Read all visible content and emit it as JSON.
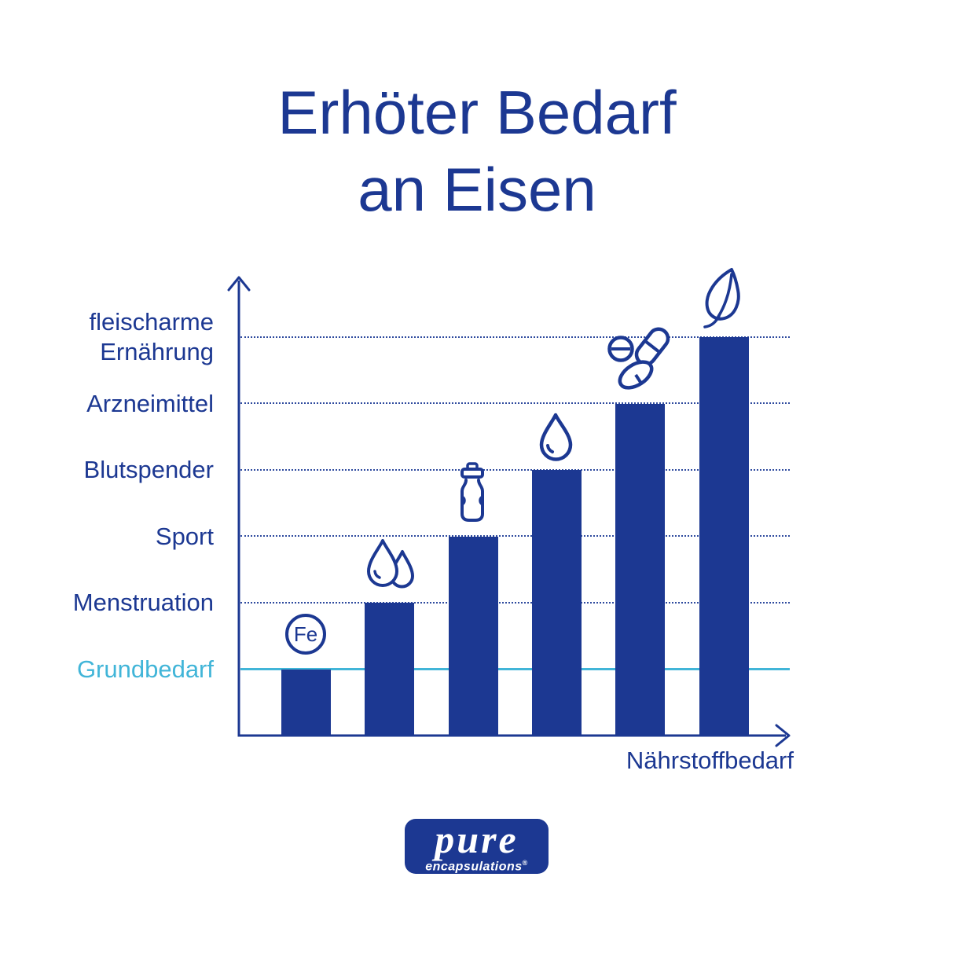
{
  "title": {
    "line1": "Erhöter Bedarf",
    "line2": "an Eisen"
  },
  "chart_data": {
    "type": "bar",
    "title": "Erhöter Bedarf an Eisen",
    "xlabel": "Nährstoffbedarf",
    "ylabel": "",
    "categories": [
      "Grundbedarf",
      "Menstruation",
      "Sport",
      "Blutspender",
      "Arzneimittel",
      "fleischarme Ernährung"
    ],
    "values": [
      1,
      2,
      3,
      4,
      5,
      6
    ],
    "ylim": [
      0,
      6.9
    ],
    "y_axis_unit": "relative iron requirement level (no numeric ticks shown)",
    "gridlines": "dotted dark-blue horizontal line at each category level; solid teal line at the Grundbedarf level",
    "legend": "none",
    "bar_color": "#1c3892",
    "baseline_color": "#41b5d8",
    "fe_symbol": "Fe",
    "rows": [
      {
        "label": "Grundbedarf",
        "value": 1,
        "icon": "fe-circle-icon",
        "line_style": "solid-teal"
      },
      {
        "label": "Menstruation",
        "value": 2,
        "icon": "water-drops-icon",
        "line_style": "dotted"
      },
      {
        "label": "Sport",
        "value": 3,
        "icon": "sports-bottle-icon",
        "line_style": "dotted"
      },
      {
        "label": "Blutspender",
        "value": 4,
        "icon": "blood-drop-icon",
        "line_style": "dotted"
      },
      {
        "label": "Arzneimittel",
        "value": 5,
        "icon": "pills-icon",
        "line_style": "dotted"
      },
      {
        "label": "fleischarme Ernährung",
        "value": 6,
        "icon": "leaf-icon",
        "line_style": "dotted"
      }
    ]
  },
  "logo": {
    "brand": "pure",
    "sub": "encapsulations",
    "registered": "®"
  },
  "colors": {
    "brand_blue": "#1c3892",
    "teal": "#41b5d8",
    "background": "#ffffff"
  }
}
